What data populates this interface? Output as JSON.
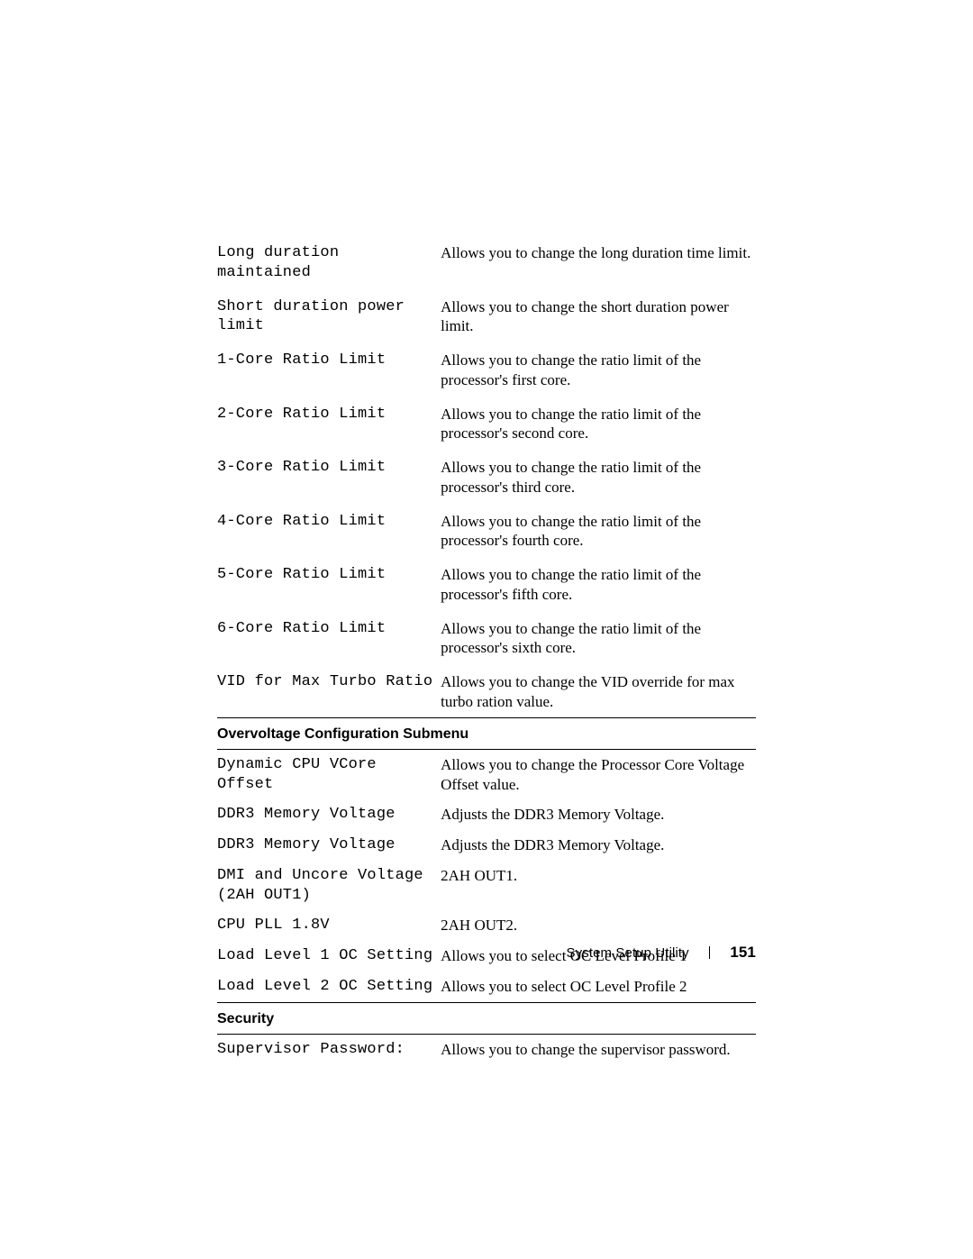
{
  "rows": [
    {
      "name": "Long duration maintained",
      "desc": "Allows you to change the long duration time limit."
    },
    {
      "name": "Short duration power limit",
      "desc": "Allows you to change the short duration power limit."
    },
    {
      "name": "1-Core Ratio Limit",
      "desc": "Allows you to change the ratio limit of the processor's first core."
    },
    {
      "name": "2-Core Ratio Limit",
      "desc": "Allows you to change the ratio limit of the processor's second core."
    },
    {
      "name": "3-Core Ratio Limit",
      "desc": "Allows you to change the ratio limit of the processor's third core."
    },
    {
      "name": "4-Core Ratio Limit",
      "desc": "Allows you to change the ratio limit of the processor's fourth core."
    },
    {
      "name": "5-Core Ratio Limit",
      "desc": "Allows you to change the ratio limit of the processor's fifth core."
    },
    {
      "name": "6-Core Ratio Limit",
      "desc": "Allows you to change the ratio limit of the processor's sixth core."
    },
    {
      "name": "VID for Max Turbo Ratio",
      "desc": "Allows you to change the VID override for max turbo ration value."
    }
  ],
  "section1": {
    "title": "Overvoltage Configuration Submenu"
  },
  "rows2": [
    {
      "name": "Dynamic CPU VCore Offset",
      "desc": "Allows you to change the Processor Core Voltage Offset value."
    },
    {
      "name": "DDR3 Memory Voltage",
      "desc": "Adjusts the DDR3 Memory Voltage."
    },
    {
      "name": "DDR3 Memory Voltage",
      "desc": "Adjusts the DDR3 Memory Voltage."
    },
    {
      "name": "DMI and Uncore Voltage\n(2AH OUT1)",
      "desc": "2AH OUT1."
    },
    {
      "name": "CPU PLL 1.8V",
      "desc": "2AH OUT2."
    },
    {
      "name": "Load Level 1 OC Setting",
      "desc": "Allows you to select OC Level Profile 1"
    },
    {
      "name": "Load Level 2 OC Setting",
      "desc": "Allows you to select OC Level Profile 2"
    }
  ],
  "section2": {
    "title": "Security"
  },
  "rows3": [
    {
      "name": "Supervisor Password:",
      "desc": "Allows you to change the supervisor password."
    }
  ],
  "footer": {
    "section": "System Setup Utility",
    "page": "151"
  }
}
